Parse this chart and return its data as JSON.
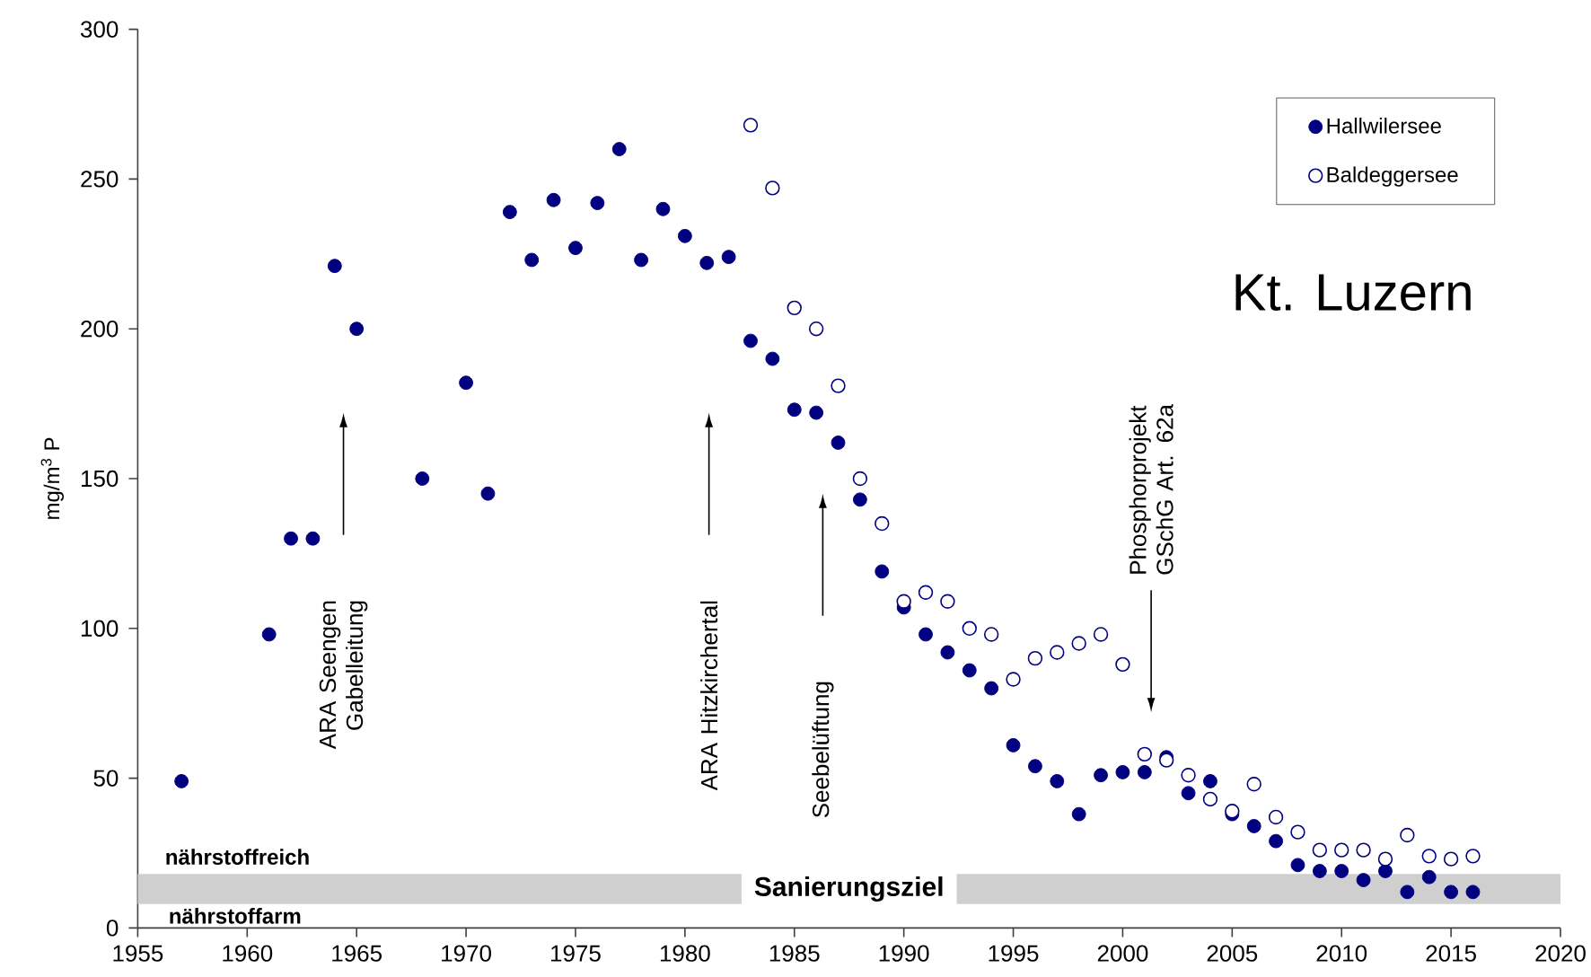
{
  "chart_data": {
    "type": "scatter",
    "ylabel": "mg/m$^{3}$ P",
    "annotations": [
      "Kt. Luzern",
      "nährstoffreich",
      "nährstoffarm",
      "ARA Seengen Gabelleitung",
      "ARA Hitzkirchertal",
      "Seebelüftung",
      "Phosphorprojekt GSchG Art. 62a"
    ],
    "bands": [
      {
        "axis": "y",
        "from": 8,
        "to": 18,
        "label": "Sanierungsziel",
        "color": "#cfcfcf"
      }
    ],
    "series": [
      {
        "name": "Hallwilersee",
        "color": "#000080",
        "x": [
          1957,
          1961,
          1962,
          1963,
          1964,
          1965,
          1968,
          1970,
          1971,
          1972,
          1973,
          1974,
          1975,
          1976,
          1977,
          1978,
          1979,
          1980,
          1981,
          1982,
          1983,
          1984,
          1985,
          1986,
          1987,
          1988,
          1989,
          1990,
          1991,
          1992,
          1993,
          1994,
          1995,
          1996,
          1997,
          1998,
          1999,
          2000,
          2001,
          2002,
          2003,
          2004,
          2005,
          2006,
          2007,
          2008,
          2009,
          2010,
          2011,
          2012,
          2013,
          2014,
          2015,
          2016
        ],
        "values": [
          49,
          98,
          130,
          130,
          221,
          200,
          150,
          182,
          145,
          239,
          223,
          243,
          227,
          242,
          260,
          223,
          240,
          231,
          222,
          224,
          196,
          190,
          173,
          172,
          162,
          143,
          119,
          107,
          98,
          92,
          86,
          80,
          61,
          54,
          49,
          38,
          51,
          52,
          52,
          57,
          45,
          49,
          38,
          34,
          29,
          21,
          19,
          19,
          16,
          19,
          12,
          17,
          12,
          12
        ]
      },
      {
        "name": "Baldeggersee",
        "color": "#000080",
        "x": [
          1983,
          1984,
          1985,
          1986,
          1987,
          1988,
          1989,
          1990,
          1991,
          1992,
          1993,
          1994,
          1995,
          1996,
          1997,
          1998,
          1999,
          2000,
          2001,
          2002,
          2003,
          2004,
          2005,
          2006,
          2007,
          2008,
          2009,
          2010,
          2011,
          2012,
          2013,
          2014,
          2015,
          2016
        ],
        "values": [
          268,
          247,
          207,
          200,
          181,
          150,
          135,
          109,
          112,
          109,
          100,
          98,
          83,
          90,
          92,
          95,
          98,
          88,
          58,
          56,
          51,
          43,
          39,
          48,
          37,
          32,
          26,
          26,
          26,
          23,
          31,
          24,
          23,
          24
        ]
      }
    ],
    "xlim": [
      1955,
      2020
    ],
    "xticks": [
      1955,
      1960,
      1965,
      1970,
      1975,
      1980,
      1985,
      1990,
      1995,
      2000,
      2005,
      2010,
      2015,
      2020
    ],
    "ylim": [
      0,
      300
    ],
    "yticks": [
      0,
      50,
      100,
      150,
      200,
      250,
      300
    ],
    "legend": "top right",
    "marker": "circle"
  }
}
